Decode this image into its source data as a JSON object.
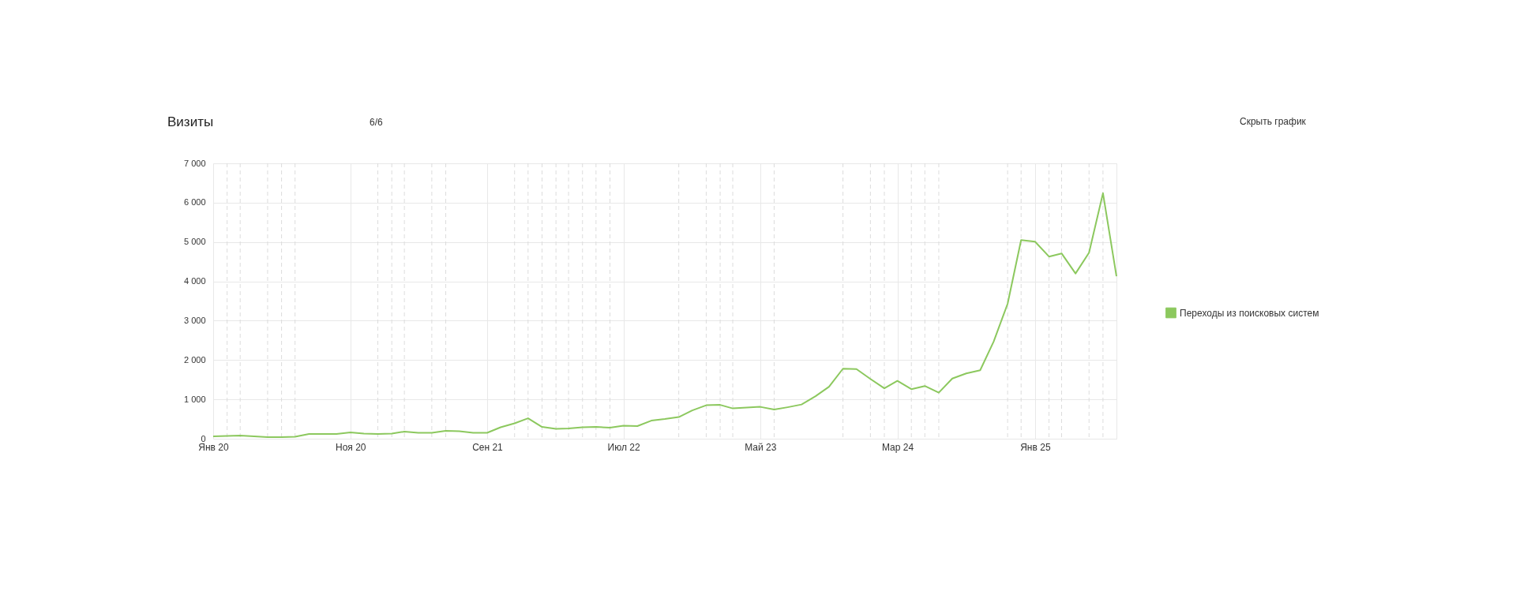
{
  "chart_data": {
    "type": "line",
    "title": "Визиты",
    "annotations": [
      "6/6",
      "Скрыть график"
    ],
    "x": [
      "2020-01",
      "2020-02",
      "2020-03",
      "2020-04",
      "2020-05",
      "2020-06",
      "2020-07",
      "2020-08",
      "2020-09",
      "2020-10",
      "2020-11",
      "2020-12",
      "2021-01",
      "2021-02",
      "2021-03",
      "2021-04",
      "2021-05",
      "2021-06",
      "2021-07",
      "2021-08",
      "2021-09",
      "2021-10",
      "2021-11",
      "2021-12",
      "2022-01",
      "2022-02",
      "2022-03",
      "2022-04",
      "2022-05",
      "2022-06",
      "2022-07",
      "2022-08",
      "2022-09",
      "2022-10",
      "2022-11",
      "2022-12",
      "2023-01",
      "2023-02",
      "2023-03",
      "2023-04",
      "2023-05",
      "2023-06",
      "2023-07",
      "2023-08",
      "2023-09",
      "2023-10",
      "2023-11",
      "2023-12",
      "2024-01",
      "2024-02",
      "2024-03",
      "2024-04",
      "2024-05",
      "2024-06",
      "2024-07",
      "2024-08",
      "2024-09",
      "2024-10",
      "2024-11",
      "2024-12",
      "2025-01",
      "2025-02",
      "2025-03",
      "2025-04",
      "2025-05",
      "2025-06",
      "2025-07"
    ],
    "series": [
      {
        "name": "Переходы из поисковых систем",
        "color": "#8cc85e",
        "values": [
          60,
          70,
          80,
          60,
          40,
          40,
          50,
          120,
          120,
          120,
          160,
          130,
          120,
          130,
          180,
          150,
          150,
          200,
          190,
          150,
          150,
          290,
          390,
          520,
          300,
          250,
          260,
          290,
          300,
          280,
          330,
          320,
          460,
          500,
          550,
          720,
          850,
          860,
          770,
          790,
          810,
          740,
          800,
          870,
          1080,
          1320,
          1780,
          1770,
          1520,
          1280,
          1470,
          1260,
          1340,
          1170,
          1530,
          1660,
          1740,
          2470,
          3430,
          5050,
          5010,
          4630,
          4710,
          4200,
          4730,
          6240,
          4130
        ]
      }
    ],
    "xlim": [
      "2020-01",
      "2025-07"
    ],
    "xticks": [
      {
        "value": "2020-01",
        "label": "Янв 20"
      },
      {
        "value": "2020-11",
        "label": "Ноя 20"
      },
      {
        "value": "2021-09",
        "label": "Сен 21"
      },
      {
        "value": "2022-07",
        "label": "Июл 22"
      },
      {
        "value": "2023-05",
        "label": "Май 23"
      },
      {
        "value": "2024-03",
        "label": "Мар 24"
      },
      {
        "value": "2025-01",
        "label": "Янв 25"
      }
    ],
    "ylim": [
      0,
      7000
    ],
    "yticks": [
      0,
      {
        "value": 1000,
        "label": "1 000"
      },
      {
        "value": 2000,
        "label": "2 000"
      },
      {
        "value": 3000,
        "label": "3 000"
      },
      {
        "value": 4000,
        "label": "4 000"
      },
      {
        "value": 5000,
        "label": "5 000"
      },
      {
        "value": 6000,
        "label": "6 000"
      },
      {
        "value": 7000,
        "label": "7 000"
      }
    ],
    "ref_lines": [
      {
        "axis": "x",
        "value": "2020-02",
        "color": "#dcdcdc",
        "line_style": "dashed"
      },
      {
        "axis": "x",
        "value": "2020-03",
        "color": "#dcdcdc",
        "line_style": "dashed"
      },
      {
        "axis": "x",
        "value": "2020-05",
        "color": "#dcdcdc",
        "line_style": "dashed"
      },
      {
        "axis": "x",
        "value": "2020-06",
        "color": "#dcdcdc",
        "line_style": "dashed"
      },
      {
        "axis": "x",
        "value": "2020-07",
        "color": "#dcdcdc",
        "line_style": "dashed"
      },
      {
        "axis": "x",
        "value": "2021-01",
        "color": "#dcdcdc",
        "line_style": "dashed"
      },
      {
        "axis": "x",
        "value": "2021-02",
        "color": "#dcdcdc",
        "line_style": "dashed"
      },
      {
        "axis": "x",
        "value": "2021-03",
        "color": "#dcdcdc",
        "line_style": "dashed"
      },
      {
        "axis": "x",
        "value": "2021-05",
        "color": "#dcdcdc",
        "line_style": "dashed"
      },
      {
        "axis": "x",
        "value": "2021-06",
        "color": "#dcdcdc",
        "line_style": "dashed"
      },
      {
        "axis": "x",
        "value": "2021-11",
        "color": "#dcdcdc",
        "line_style": "dashed"
      },
      {
        "axis": "x",
        "value": "2021-12",
        "color": "#dcdcdc",
        "line_style": "dashed"
      },
      {
        "axis": "x",
        "value": "2022-01",
        "color": "#dcdcdc",
        "line_style": "dashed"
      },
      {
        "axis": "x",
        "value": "2022-02",
        "color": "#dcdcdc",
        "line_style": "dashed"
      },
      {
        "axis": "x",
        "value": "2022-03",
        "color": "#dcdcdc",
        "line_style": "dashed"
      },
      {
        "axis": "x",
        "value": "2022-04",
        "color": "#dcdcdc",
        "line_style": "dashed"
      },
      {
        "axis": "x",
        "value": "2022-05",
        "color": "#dcdcdc",
        "line_style": "dashed"
      },
      {
        "axis": "x",
        "value": "2022-06",
        "color": "#dcdcdc",
        "line_style": "dashed"
      },
      {
        "axis": "x",
        "value": "2022-11",
        "color": "#dcdcdc",
        "line_style": "dashed"
      },
      {
        "axis": "x",
        "value": "2023-01",
        "color": "#dcdcdc",
        "line_style": "dashed"
      },
      {
        "axis": "x",
        "value": "2023-02",
        "color": "#dcdcdc",
        "line_style": "dashed"
      },
      {
        "axis": "x",
        "value": "2023-03",
        "color": "#dcdcdc",
        "line_style": "dashed"
      },
      {
        "axis": "x",
        "value": "2023-06",
        "color": "#dcdcdc",
        "line_style": "dashed"
      },
      {
        "axis": "x",
        "value": "2023-11",
        "color": "#dcdcdc",
        "line_style": "dashed"
      },
      {
        "axis": "x",
        "value": "2024-01",
        "color": "#dcdcdc",
        "line_style": "dashed"
      },
      {
        "axis": "x",
        "value": "2024-02",
        "color": "#dcdcdc",
        "line_style": "dashed"
      },
      {
        "axis": "x",
        "value": "2024-04",
        "color": "#dcdcdc",
        "line_style": "dashed"
      },
      {
        "axis": "x",
        "value": "2024-05",
        "color": "#dcdcdc",
        "line_style": "dashed"
      },
      {
        "axis": "x",
        "value": "2024-06",
        "color": "#dcdcdc",
        "line_style": "dashed"
      },
      {
        "axis": "x",
        "value": "2024-11",
        "color": "#dcdcdc",
        "line_style": "dashed"
      },
      {
        "axis": "x",
        "value": "2024-12",
        "color": "#dcdcdc",
        "line_style": "dashed"
      },
      {
        "axis": "x",
        "value": "2025-02",
        "color": "#dcdcdc",
        "line_style": "dashed"
      },
      {
        "axis": "x",
        "value": "2025-03",
        "color": "#dcdcdc",
        "line_style": "dashed"
      },
      {
        "axis": "x",
        "value": "2025-05",
        "color": "#dcdcdc",
        "line_style": "dashed"
      },
      {
        "axis": "x",
        "value": "2025-06",
        "color": "#dcdcdc",
        "line_style": "dashed"
      }
    ],
    "grid": true,
    "legend": "right",
    "marker": "none",
    "line_style": "solid"
  }
}
